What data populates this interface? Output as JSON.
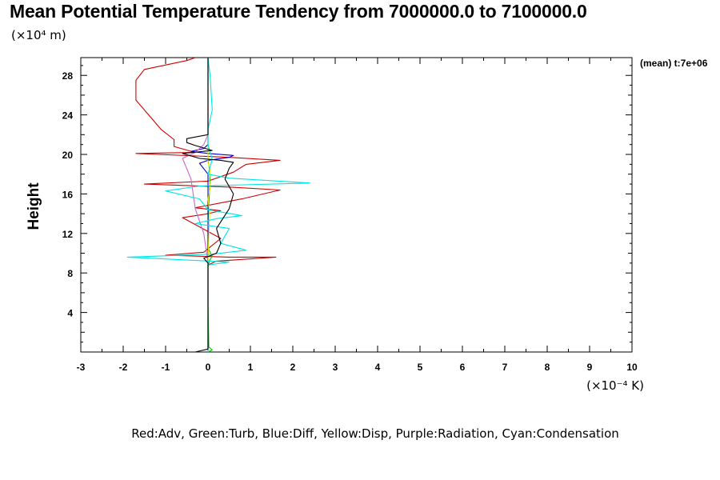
{
  "chart_data": {
    "type": "line",
    "title": "Mean Potential Temperature Tendency from 7000000.0 to 7100000.0",
    "ylabel": "Height",
    "y_multiplier_label": "(×10⁴ m)",
    "x_multiplier_label": "(×10⁻⁴ K)",
    "annotation": "(mean) t:7e+06",
    "legend_text": "Red:Adv, Green:Turb, Blue:Diff, Yellow:Disp, Purple:Radiation, Cyan:Condensation",
    "xlim": [
      -3,
      10
    ],
    "ylim": [
      0,
      29.8
    ],
    "xticks": [
      -3,
      -2,
      -1,
      0,
      1,
      2,
      3,
      4,
      5,
      6,
      7,
      8,
      9,
      10
    ],
    "yticks": [
      4,
      8,
      12,
      16,
      20,
      24,
      28
    ],
    "colors": {
      "Adv": "#cc0000",
      "Turb": "#00cc00",
      "Diff": "#0000cc",
      "Disp": "#e6e600",
      "Radiation": "#cc66cc",
      "Condensation": "#00e5e5",
      "Total": "#000000"
    },
    "series": [
      {
        "key": "Adv",
        "color": "#cc0000",
        "points": [
          [
            0,
            0
          ],
          [
            0,
            3
          ],
          [
            0,
            8.8
          ],
          [
            0.2,
            9.2
          ],
          [
            1.6,
            9.6
          ],
          [
            0.5,
            9.6
          ],
          [
            -1.0,
            9.8
          ],
          [
            -0.1,
            10.1
          ],
          [
            0.3,
            11.5
          ],
          [
            -0.6,
            13.6
          ],
          [
            0.0,
            14
          ],
          [
            0.3,
            14.3
          ],
          [
            -0.3,
            14.6
          ],
          [
            0.8,
            15.5
          ],
          [
            1.7,
            16.4
          ],
          [
            0.5,
            16.7
          ],
          [
            -1.5,
            17.0
          ],
          [
            0.0,
            17.3
          ],
          [
            0.6,
            18.2
          ],
          [
            0.9,
            19.0
          ],
          [
            1.7,
            19.4
          ],
          [
            0.5,
            19.7
          ],
          [
            -1.7,
            20.1
          ],
          [
            -0.3,
            20.2
          ],
          [
            -0.8,
            20.8
          ],
          [
            -0.8,
            21.5
          ],
          [
            -1.1,
            22.5
          ],
          [
            -1.7,
            25.5
          ],
          [
            -1.7,
            27.5
          ],
          [
            -1.5,
            28.6
          ],
          [
            -0.5,
            29.5
          ],
          [
            -0.3,
            29.8
          ]
        ]
      },
      {
        "key": "Turb",
        "color": "#00cc00",
        "points": [
          [
            0,
            0
          ],
          [
            0.1,
            0.2
          ],
          [
            0.02,
            0.5
          ],
          [
            0,
            5
          ],
          [
            0,
            8.6
          ],
          [
            0.04,
            9.3
          ],
          [
            0.1,
            9.7
          ],
          [
            0,
            10.5
          ],
          [
            0,
            13
          ],
          [
            0.02,
            15
          ],
          [
            0.05,
            17.5
          ],
          [
            0.03,
            18.6
          ],
          [
            0,
            19.5
          ],
          [
            0,
            23
          ],
          [
            0,
            29.8
          ]
        ]
      },
      {
        "key": "Diff",
        "color": "#0000cc",
        "points": [
          [
            0,
            0
          ],
          [
            0,
            9
          ],
          [
            0,
            18
          ],
          [
            -0.2,
            19.1
          ],
          [
            0,
            19.4
          ],
          [
            0.5,
            19.7
          ],
          [
            0.6,
            19.9
          ],
          [
            0,
            20.1
          ],
          [
            -0.4,
            20.3
          ],
          [
            -0.1,
            20.6
          ],
          [
            0,
            21
          ],
          [
            0,
            29.8
          ]
        ]
      },
      {
        "key": "Disp",
        "color": "#e6e600",
        "points": [
          [
            0,
            0
          ],
          [
            0,
            9
          ],
          [
            0.02,
            12
          ],
          [
            0.04,
            14
          ],
          [
            0,
            15.5
          ],
          [
            0.05,
            16.5
          ],
          [
            0.03,
            17.5
          ],
          [
            0.05,
            18.5
          ],
          [
            0,
            19.2
          ],
          [
            0,
            29.8
          ]
        ]
      },
      {
        "key": "Radiation",
        "color": "#cc66cc",
        "points": [
          [
            0,
            0
          ],
          [
            0,
            9
          ],
          [
            -0.05,
            10.5
          ],
          [
            -0.1,
            12
          ],
          [
            -0.3,
            14.5
          ],
          [
            -0.4,
            17.5
          ],
          [
            -0.6,
            19.6
          ],
          [
            -0.3,
            20.2
          ],
          [
            -0.1,
            21
          ],
          [
            0,
            22
          ],
          [
            0,
            29.8
          ]
        ]
      },
      {
        "key": "Condensation",
        "color": "#00e5e5",
        "points": [
          [
            0,
            0
          ],
          [
            0,
            8.8
          ],
          [
            0.5,
            9.1
          ],
          [
            -1.9,
            9.6
          ],
          [
            0.1,
            9.9
          ],
          [
            0.9,
            10.3
          ],
          [
            0.3,
            11
          ],
          [
            0.5,
            12.5
          ],
          [
            -0.3,
            13
          ],
          [
            0.2,
            13.5
          ],
          [
            0.8,
            13.8
          ],
          [
            0,
            14.4
          ],
          [
            -0.2,
            15.5
          ],
          [
            -1.0,
            16.3
          ],
          [
            -0.2,
            16.8
          ],
          [
            2.4,
            17.1
          ],
          [
            0.5,
            17.6
          ],
          [
            0.0,
            18
          ],
          [
            0.1,
            19.5
          ],
          [
            0,
            21
          ],
          [
            0,
            22.5
          ],
          [
            0.1,
            24.5
          ],
          [
            0.05,
            28
          ],
          [
            0,
            29.8
          ]
        ]
      },
      {
        "key": "Total",
        "color": "#000000",
        "points": [
          [
            -0.3,
            0
          ],
          [
            0,
            0.3
          ],
          [
            0,
            5
          ],
          [
            0,
            9
          ],
          [
            -0.1,
            9.5
          ],
          [
            0.2,
            10
          ],
          [
            0.3,
            11
          ],
          [
            0.2,
            12.5
          ],
          [
            0.5,
            14.5
          ],
          [
            0.6,
            16
          ],
          [
            0.4,
            17.5
          ],
          [
            0.5,
            18.6
          ],
          [
            0.6,
            19.2
          ],
          [
            0.3,
            19.4
          ],
          [
            -0.2,
            19.6
          ],
          [
            -0.6,
            20.1
          ],
          [
            0.1,
            20.4
          ],
          [
            -0.3,
            20.9
          ],
          [
            -0.5,
            21.2
          ],
          [
            -0.5,
            21.6
          ],
          [
            0,
            22
          ],
          [
            0,
            29.8
          ]
        ]
      }
    ]
  }
}
